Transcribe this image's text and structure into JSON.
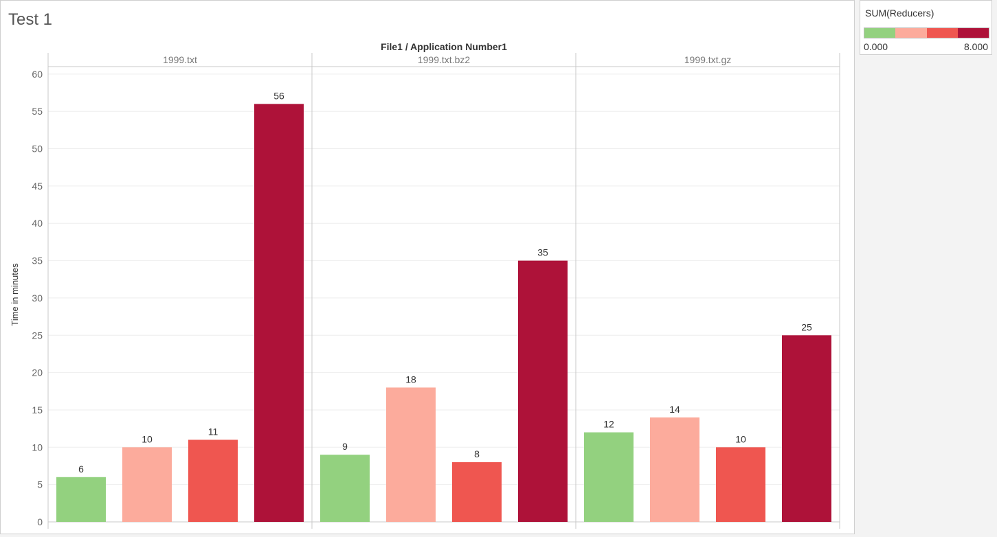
{
  "sheet": {
    "title": "Test 1"
  },
  "legend": {
    "title": "SUM(Reducers)",
    "min_label": "0.000",
    "max_label": "8.000",
    "colors": [
      "#93d17f",
      "#fcab9c",
      "#ef5650",
      "#ae1239"
    ]
  },
  "chart_data": {
    "type": "bar",
    "title": "File1 / Application Number1",
    "ylabel": "Time in minutes",
    "xlabel": "",
    "ylim": [
      0,
      61
    ],
    "yticks": [
      0,
      5,
      10,
      15,
      20,
      25,
      30,
      35,
      40,
      45,
      50,
      55,
      60
    ],
    "grid": true,
    "panels": [
      {
        "name": "1999.txt",
        "values": [
          6,
          10,
          11,
          56
        ]
      },
      {
        "name": "1999.txt.bz2",
        "values": [
          9,
          18,
          8,
          35
        ]
      },
      {
        "name": "1999.txt.gz",
        "values": [
          12,
          14,
          10,
          25
        ]
      }
    ],
    "bar_colors": [
      "#93d17f",
      "#fcab9c",
      "#ef5650",
      "#ae1239"
    ]
  }
}
